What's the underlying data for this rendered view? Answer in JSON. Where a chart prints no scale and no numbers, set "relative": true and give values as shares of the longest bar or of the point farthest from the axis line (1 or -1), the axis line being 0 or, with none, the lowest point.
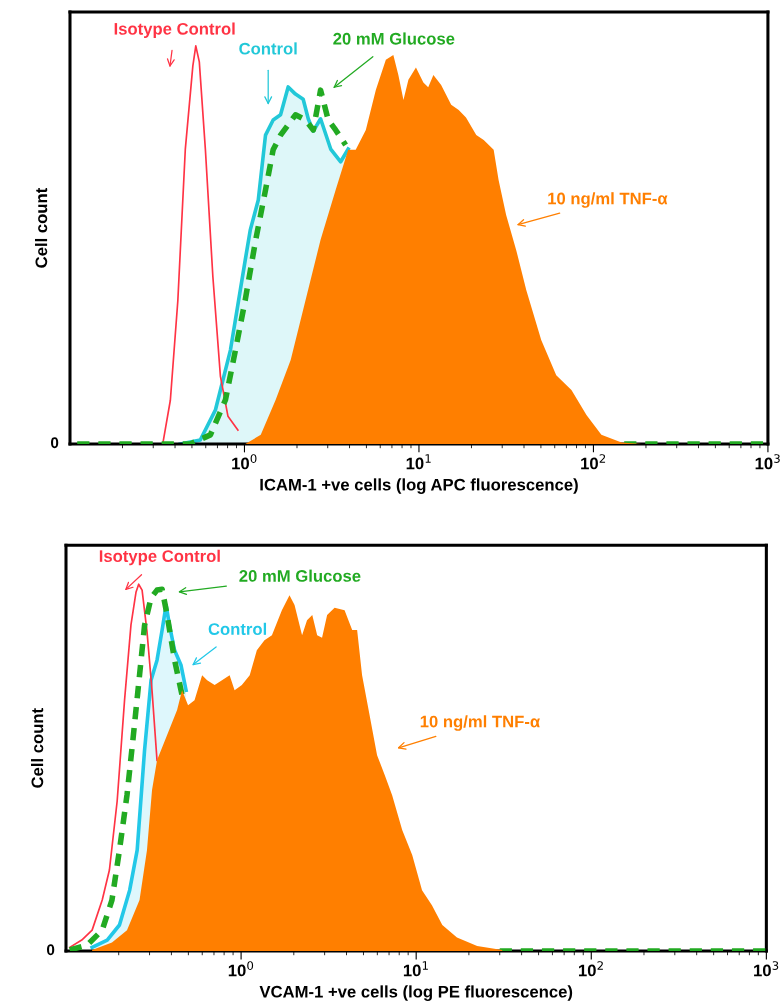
{
  "chart_data": [
    {
      "type": "area",
      "relative": true,
      "log": "x",
      "xlabel": "ICAM-1 +ve cells (log APC fluorescence)",
      "ylabel": "Cell count",
      "xlim": [
        0.1,
        1000
      ],
      "xticks": [
        {
          "value": 1,
          "label": "10$^{0}$"
        },
        {
          "value": 10,
          "label": "10$^{1}$"
        },
        {
          "value": 100,
          "label": "10$^{2}$"
        },
        {
          "value": 1000,
          "label": "10$^{3}$"
        }
      ],
      "grid": false,
      "legend": false,
      "annotations": [
        "0"
      ],
      "series": [
        {
          "name": "Isotype Control",
          "type": "line",
          "color": "#ff3344",
          "x": [
            0.34,
            0.376,
            0.415,
            0.458,
            0.506,
            0.526,
            0.551,
            0.597,
            0.659,
            0.728,
            0.804,
            0.917
          ],
          "values": [
            0,
            0.11,
            0.36,
            0.74,
            0.95,
            1.0,
            0.96,
            0.74,
            0.42,
            0.17,
            0.07,
            0.035
          ]
        },
        {
          "name": "Control",
          "color": "#22c8d8",
          "x": [
            0.429,
            0.558,
            0.681,
            0.831,
            1.01,
            1.08,
            1.2,
            1.32,
            1.46,
            1.61,
            1.78,
            1.96,
            2.17,
            2.32,
            2.48,
            2.73,
            3.12,
            3.56,
            3.93
          ],
          "values": [
            0,
            0.01,
            0.085,
            0.236,
            0.462,
            0.538,
            0.613,
            0.776,
            0.814,
            0.827,
            0.897,
            0.879,
            0.866,
            0.817,
            0.786,
            0.817,
            0.741,
            0.709,
            0.741
          ]
        },
        {
          "name": "20 mM Glucose",
          "type": "line",
          "line_style": "dashed",
          "color": "#22aa22",
          "x": [
            0.11,
            0.489,
            0.638,
            0.778,
            0.888,
            1.01,
            1.16,
            1.32,
            1.46,
            1.61,
            1.78,
            1.96,
            2.24,
            2.48,
            2.73,
            3.02,
            3.33,
            3.8,
            100,
            150,
            1000
          ],
          "values": [
            0,
            0,
            0.023,
            0.111,
            0.236,
            0.362,
            0.513,
            0.638,
            0.739,
            0.776,
            0.802,
            0.827,
            0.814,
            0.789,
            0.889,
            0.814,
            0.789,
            0.751,
            null,
            0,
            0
          ]
        },
        {
          "name": "10 ng/ml TNF-α",
          "color": "#ff7f00",
          "x": [
            1.01,
            1.24,
            1.51,
            1.84,
            2.24,
            2.73,
            3.33,
            3.93,
            4.34,
            4.96,
            5.66,
            6.46,
            7.13,
            7.62,
            8.15,
            8.7,
            9.61,
            10.6,
            11.3,
            12.1,
            13.4,
            15.3,
            16.9,
            18.6,
            21.3,
            23.5,
            26.8,
            28.6,
            31.6,
            36.1,
            41.2,
            50.2,
            61.2,
            74.8,
            91.2,
            111,
            145,
            189
          ],
          "values": [
            0,
            0.023,
            0.111,
            0.211,
            0.362,
            0.513,
            0.638,
            0.739,
            0.739,
            0.789,
            0.889,
            0.965,
            0.977,
            0.927,
            0.864,
            0.915,
            0.946,
            0.908,
            0.896,
            0.927,
            0.902,
            0.852,
            0.839,
            0.82,
            0.776,
            0.764,
            0.739,
            0.663,
            0.575,
            0.487,
            0.387,
            0.261,
            0.173,
            0.136,
            0.073,
            0.023,
            0.004,
            0
          ]
        }
      ]
    },
    {
      "type": "area",
      "relative": true,
      "log": "x",
      "xlabel": "VCAM-1 +ve cells (log PE fluorescence)",
      "ylabel": "Cell count",
      "xlim": [
        0.1,
        1000
      ],
      "xticks": [
        {
          "value": 1,
          "label": "10$^{0}$"
        },
        {
          "value": 10,
          "label": "10$^{1}$"
        },
        {
          "value": 100,
          "label": "10$^{2}$"
        },
        {
          "value": 1000,
          "label": "10$^{3}$"
        }
      ],
      "grid": false,
      "legend": false,
      "annotations": [
        "0"
      ],
      "series": [
        {
          "name": "Isotype Control",
          "type": "line",
          "color": "#ff3344",
          "x": [
            0.105,
            0.123,
            0.141,
            0.161,
            0.177,
            0.196,
            0.216,
            0.235,
            0.251,
            0.26,
            0.272,
            0.29,
            0.31,
            0.331
          ],
          "values": [
            0.01,
            0.03,
            0.057,
            0.139,
            0.221,
            0.409,
            0.684,
            0.889,
            0.978,
            1.0,
            0.984,
            0.872,
            0.71,
            0.52
          ]
        },
        {
          "name": "Control",
          "color": "#22c8e8",
          "x": [
            0.141,
            0.172,
            0.202,
            0.231,
            0.255,
            0.281,
            0.306,
            0.331,
            0.354,
            0.373,
            0.39,
            0.417,
            0.454,
            0.485
          ],
          "values": [
            0.01,
            0.03,
            0.071,
            0.166,
            0.275,
            0.548,
            0.738,
            0.793,
            0.875,
            0.943,
            0.888,
            0.82,
            0.779,
            0.711
          ]
        },
        {
          "name": "20 mM Glucose",
          "type": "line",
          "line_style": "dashed",
          "color": "#22aa22",
          "x": [
            0.105,
            0.132,
            0.161,
            0.183,
            0.202,
            0.223,
            0.241,
            0.263,
            0.281,
            0.306,
            0.331,
            0.354,
            0.378,
            0.417,
            0.46,
            10,
            30,
            1000
          ],
          "values": [
            0.003,
            0.016,
            0.057,
            0.139,
            0.275,
            0.425,
            0.575,
            0.752,
            0.888,
            0.963,
            0.984,
            0.986,
            0.916,
            0.793,
            0.698,
            null,
            0,
            0
          ]
        },
        {
          "name": "10 ng/ml TNF-α",
          "color": "#ff7f00",
          "x": [
            0.141,
            0.183,
            0.223,
            0.263,
            0.29,
            0.31,
            0.331,
            0.378,
            0.431,
            0.46,
            0.498,
            0.542,
            0.599,
            0.64,
            0.706,
            0.778,
            0.86,
            0.918,
            1.01,
            1.12,
            1.23,
            1.36,
            1.5,
            1.71,
            1.89,
            2.02,
            2.23,
            2.38,
            2.55,
            2.72,
            2.9,
            3.1,
            3.42,
            3.9,
            4.31,
            4.6,
            4.91,
            5.42,
            5.98,
            6.61,
            7.29,
            8.32,
            9.49,
            10.8,
            12.3,
            14.1,
            17.1,
            22.3,
            31.0
          ],
          "values": [
            0.003,
            0.023,
            0.057,
            0.139,
            0.275,
            0.439,
            0.52,
            0.589,
            0.657,
            0.711,
            0.67,
            0.684,
            0.752,
            0.738,
            0.725,
            0.738,
            0.752,
            0.711,
            0.725,
            0.752,
            0.82,
            0.847,
            0.861,
            0.929,
            0.97,
            0.943,
            0.861,
            0.902,
            0.916,
            0.861,
            0.854,
            0.916,
            0.936,
            0.929,
            0.875,
            0.875,
            0.752,
            0.643,
            0.534,
            0.48,
            0.425,
            0.33,
            0.262,
            0.166,
            0.125,
            0.071,
            0.037,
            0.014,
            0.003
          ]
        }
      ]
    }
  ]
}
